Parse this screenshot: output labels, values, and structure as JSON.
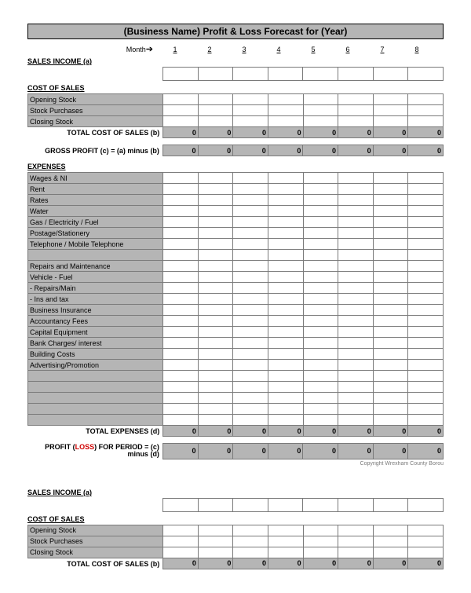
{
  "title": "(Business Name) Profit & Loss Forecast for (Year)",
  "monthLabel": "Month",
  "months": [
    "1",
    "2",
    "3",
    "4",
    "5",
    "6",
    "7",
    "8"
  ],
  "sections": {
    "salesIncome": "SALES INCOME (a)",
    "costOfSales": "COST OF SALES",
    "expenses": "EXPENSES"
  },
  "costOfSalesRows": [
    "Opening Stock",
    "Stock Purchases",
    "Closing Stock"
  ],
  "totalCostOfSales": "TOTAL COST OF SALES (b)",
  "grossProfit": "GROSS PROFIT (c)  = (a) minus (b)",
  "expensesRows": [
    "Wages & NI",
    "Rent",
    "Rates",
    "Water",
    "Gas / Electricity / Fuel",
    "Postage/Stationery",
    "Telephone / Mobile Telephone",
    "",
    "Repairs and Maintenance",
    "Vehicle - Fuel",
    "        - Repairs/Main",
    "        - Ins and tax",
    "Business Insurance",
    "Accountancy Fees",
    "Capital Equipment",
    "Bank Charges/ interest",
    "Building Costs",
    "Advertising/Promotion",
    "",
    "",
    "",
    "",
    ""
  ],
  "totalExpenses": "TOTAL EXPENSES (d)",
  "profitLoss1": "PROFIT (",
  "profitLossRed": "LOSS",
  "profitLoss2": ") FOR PERIOD  = (c)",
  "profitLoss3": "minus (d)",
  "zeros": [
    "0",
    "0",
    "0",
    "0",
    "0",
    "0",
    "0",
    "0"
  ],
  "copyright": "Copyright Wrexham County Borou",
  "colors": {
    "grey": "#b5b5b5",
    "border": "#7a7a7a"
  }
}
